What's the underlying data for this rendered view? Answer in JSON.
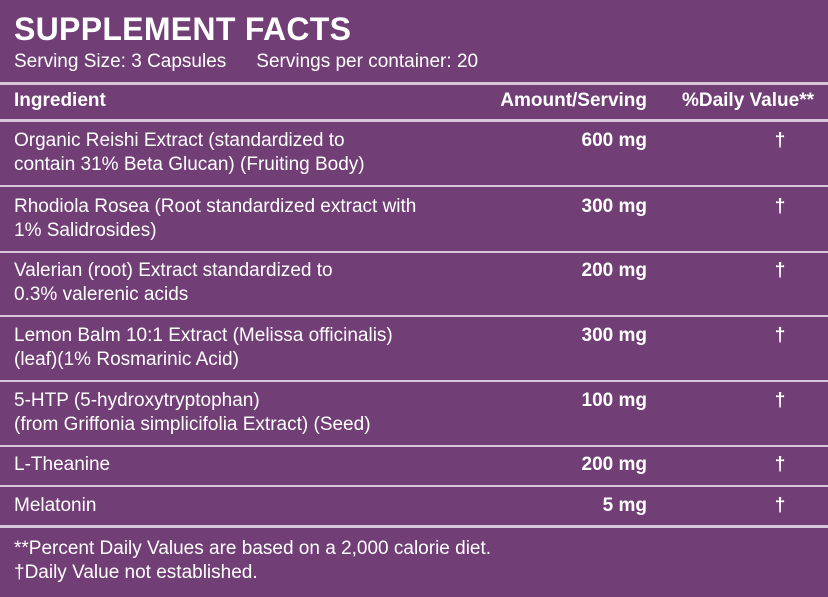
{
  "title": "SUPPLEMENT FACTS",
  "serving_size": "Serving Size: 3 Capsules",
  "servings_per_container": "Servings per container: 20",
  "headers": {
    "ingredient": "Ingredient",
    "amount": "Amount/Serving",
    "daily_value": "%Daily Value**"
  },
  "rows": [
    {
      "line1": "Organic Reishi Extract (standardized to",
      "line2": "contain 31% Beta Glucan) (Fruiting Body)",
      "amount": "600 mg",
      "dv": "†"
    },
    {
      "line1": "Rhodiola Rosea (Root standardized extract with",
      "line2": "1% Salidrosides)",
      "amount": "300 mg",
      "dv": "†"
    },
    {
      "line1": "Valerian (root) Extract standardized to",
      "line2": "0.3% valerenic acids",
      "amount": "200 mg",
      "dv": "†"
    },
    {
      "line1": "Lemon Balm 10:1 Extract (Melissa officinalis)",
      "line2": "(leaf)(1% Rosmarinic Acid)",
      "amount": "300 mg",
      "dv": "†"
    },
    {
      "line1": "5-HTP (5-hydroxytryptophan)",
      "line2": "(from Griffonia simplicifolia Extract) (Seed)",
      "amount": "100 mg",
      "dv": "†"
    },
    {
      "line1": "L-Theanine",
      "line2": "",
      "amount": "200 mg",
      "dv": "†"
    },
    {
      "line1": "Melatonin",
      "line2": "",
      "amount": "5 mg",
      "dv": "†"
    }
  ],
  "footnotes": {
    "percent_dv": "**Percent Daily Values are based on a 2,000 calorie diet.",
    "not_established": "†Daily Value not established."
  },
  "colors": {
    "background": "#713f76",
    "text": "#ffffff",
    "rules": "#d8c7da"
  }
}
